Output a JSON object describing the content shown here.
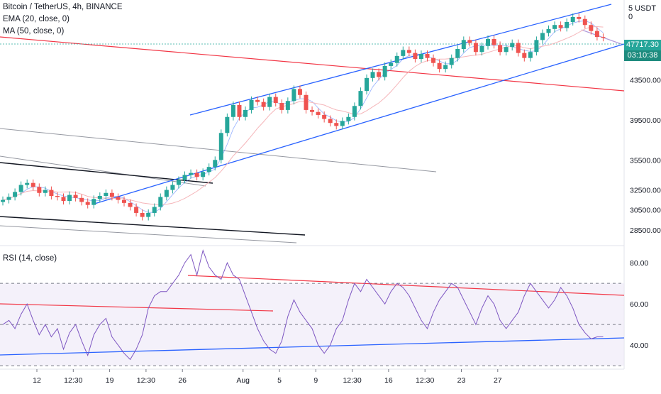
{
  "header": {
    "symbol": "Bitcoin / TetherUS, 4h, BINANCE",
    "ema_label": "EMA (20, close, 0)",
    "ma_label": "MA (50, close, 0)",
    "currency": "5 USDT 0",
    "rsi_label": "RSI (14, close)"
  },
  "price_tags": {
    "last": "47717.30",
    "countdown": "03:10:38"
  },
  "colors": {
    "up": "#26a69a",
    "down": "#ef5350",
    "channel": "#2962ff",
    "red_line": "#f23645",
    "grey_line": "#9598a1",
    "ema": "#2962ff",
    "ma": "#f5b5b9",
    "rsi": "#7e57c2",
    "rsi_band": "#ede7f6",
    "label_bg": "#26a69a",
    "count_bg": "#1e8b7e"
  },
  "chart_data": [
    {
      "type": "candlestick",
      "title": "Bitcoin / TetherUS, 4h, BINANCE",
      "series": [
        {
          "name": "EMA (20, close, 0)"
        },
        {
          "name": "MA (50, close, 0)"
        }
      ],
      "y_ticks": [
        43500,
        39500,
        35500,
        32500,
        30500,
        28500
      ],
      "ylim": [
        27000,
        51500
      ],
      "last_price": 47717.3,
      "x_ticks": [
        "12",
        "12:30",
        "19",
        "12:30",
        "26",
        "Aug",
        "5",
        "9",
        "12:30",
        "16",
        "12:30",
        "23",
        "27"
      ],
      "x_tick_index": [
        0,
        6,
        12,
        18,
        24,
        34,
        40,
        46,
        52,
        58,
        64,
        70,
        76
      ],
      "close": [
        31500,
        31800,
        32300,
        33000,
        33200,
        32800,
        32200,
        32500,
        31900,
        31800,
        31400,
        32000,
        31700,
        31300,
        31000,
        31600,
        31900,
        32200,
        31800,
        31500,
        31200,
        30800,
        30200,
        29800,
        30200,
        30800,
        31800,
        32500,
        33000,
        33500,
        34000,
        34200,
        33800,
        34300,
        34800,
        35500,
        38200,
        39800,
        41000,
        39800,
        40500,
        41500,
        41300,
        40800,
        41800,
        41200,
        40500,
        41400,
        42600,
        42000,
        40500,
        40300,
        40000,
        39600,
        39200,
        38900,
        39400,
        39800,
        40900,
        42400,
        43700,
        44300,
        43800,
        44900,
        45200,
        45900,
        46500,
        46200,
        45600,
        46100,
        45700,
        45200,
        44600,
        45000,
        45700,
        46600,
        47500,
        47200,
        46300,
        46900,
        47600,
        47000,
        46300,
        46800,
        47200,
        46200,
        45700,
        46300,
        47500,
        48200,
        48600,
        49000,
        48700,
        49300,
        49800,
        49600,
        49000,
        48400,
        47800,
        47717
      ]
    },
    {
      "type": "line",
      "title": "RSI (14, close)",
      "series": [
        {
          "name": "RSI (14, close)"
        }
      ],
      "y_ticks": [
        40,
        60,
        80
      ],
      "ylim": [
        29,
        88
      ],
      "bands": [
        70,
        50,
        30
      ],
      "values": [
        50,
        52,
        48,
        55,
        60,
        52,
        45,
        50,
        44,
        48,
        38,
        46,
        50,
        42,
        35,
        45,
        50,
        53,
        44,
        40,
        36,
        33,
        38,
        45,
        58,
        64,
        66,
        66,
        70,
        74,
        80,
        84,
        74,
        86,
        78,
        74,
        72,
        80,
        74,
        72,
        64,
        56,
        48,
        42,
        38,
        36,
        42,
        54,
        62,
        56,
        52,
        48,
        40,
        36,
        40,
        48,
        52,
        62,
        70,
        66,
        72,
        68,
        64,
        60,
        66,
        70,
        68,
        64,
        58,
        52,
        48,
        56,
        62,
        66,
        70,
        68,
        62,
        56,
        50,
        58,
        64,
        60,
        52,
        48,
        52,
        56,
        64,
        70,
        66,
        62,
        58,
        62,
        68,
        64,
        58,
        50,
        46,
        43,
        44,
        44
      ]
    }
  ]
}
